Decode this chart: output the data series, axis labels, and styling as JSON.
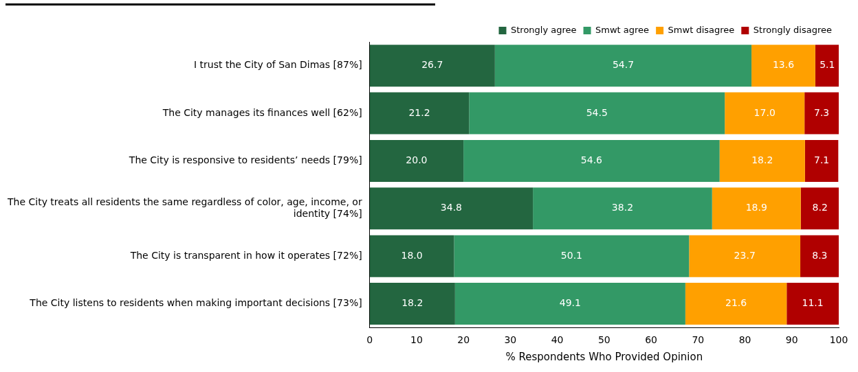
{
  "chart_data": {
    "type": "bar",
    "orientation": "horizontal",
    "stacked": true,
    "categories": [
      "I trust the City of San Dimas [87%]",
      "The City manages its finances well [62%]",
      "The City is responsive to residents’ needs [79%]",
      "The City treats all residents the same regardless of color, age, income, or identity [74%]",
      "The City is transparent in how it operates [72%]",
      "The City listens to residents when making important decisions [73%]"
    ],
    "series": [
      {
        "name": "Strongly agree",
        "color": "#236640",
        "values": [
          26.7,
          21.2,
          20.0,
          34.8,
          18.0,
          18.2
        ],
        "value_labels": [
          "26.7",
          "21.2",
          "20.0",
          "34.8",
          "18.0",
          "18.2"
        ]
      },
      {
        "name": "Smwt agree",
        "color": "#339966",
        "values": [
          54.7,
          54.5,
          54.6,
          38.2,
          50.1,
          49.1
        ],
        "value_labels": [
          "54.7",
          "54.5",
          "54.6",
          "38.2",
          "50.1",
          "49.1"
        ]
      },
      {
        "name": "Smwt disagree",
        "color": "#ffa000",
        "values": [
          13.6,
          17.0,
          18.2,
          18.9,
          23.7,
          21.6
        ],
        "value_labels": [
          "13.6",
          "17.0",
          "18.2",
          "18.9",
          "23.7",
          "21.6"
        ]
      },
      {
        "name": "Strongly disagree",
        "color": "#b00000",
        "values": [
          5.1,
          7.3,
          7.1,
          8.2,
          8.3,
          11.1
        ],
        "value_labels": [
          "5.1",
          "7.3",
          "7.1",
          "8.2",
          "8.3",
          "11.1"
        ]
      }
    ],
    "xlabel": "% Respondents Who Provided Opinion",
    "xlim": [
      0,
      100
    ],
    "xticks": [
      0,
      10,
      20,
      30,
      40,
      50,
      60,
      70,
      80,
      90,
      100
    ],
    "legend": "top",
    "grid": false
  }
}
